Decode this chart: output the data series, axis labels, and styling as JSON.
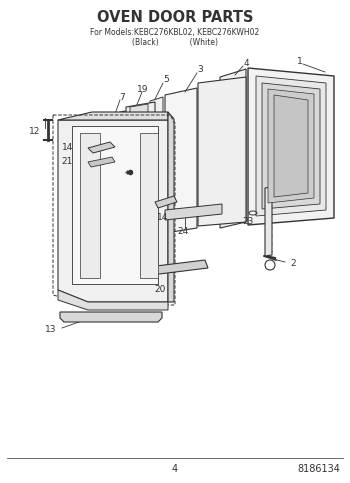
{
  "title": "OVEN DOOR PARTS",
  "subtitle_line1": "For Models:KEBC276KBL02, KEBC276KWH02",
  "subtitle_line2": "(Black)             (White)",
  "page_number": "4",
  "part_number": "8186134",
  "background_color": "#ffffff",
  "line_color": "#333333",
  "fig_width": 3.5,
  "fig_height": 4.83,
  "dpi": 100
}
